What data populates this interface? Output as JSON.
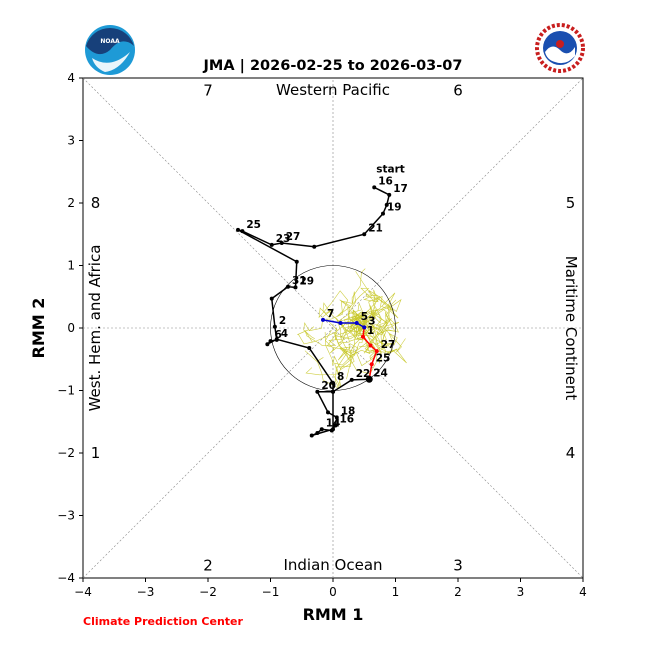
{
  "logos": {
    "left": "NOAA",
    "right": "NATIONAL WEATHER SERVICE"
  },
  "chart_data": {
    "type": "line",
    "title": "JMA | 2026-02-25 to 2026-03-07",
    "xlabel": "RMM 1",
    "ylabel": "RMM 2",
    "xlim": [
      -4,
      4
    ],
    "ylim": [
      -4,
      4
    ],
    "xticks": [
      "−4",
      "−3",
      "−2",
      "−1",
      "0",
      "1",
      "2",
      "3",
      "4"
    ],
    "yticks": [
      "−4",
      "−3",
      "−2",
      "−1",
      "0",
      "1",
      "2",
      "3",
      "4"
    ],
    "regions": {
      "top": "Western Pacific",
      "bottom": "Indian Ocean",
      "left": "West. Hem. and Africa",
      "right": "Maritime Continent"
    },
    "phases": [
      {
        "label": "1",
        "x": -3.8,
        "y": -2.0
      },
      {
        "label": "2",
        "x": -2.0,
        "y": -3.8
      },
      {
        "label": "3",
        "x": 2.0,
        "y": -3.8
      },
      {
        "label": "4",
        "x": 3.8,
        "y": -2.0
      },
      {
        "label": "5",
        "x": 3.8,
        "y": 2.0
      },
      {
        "label": "6",
        "x": 2.0,
        "y": 3.8
      },
      {
        "label": "7",
        "x": -2.0,
        "y": 3.8
      },
      {
        "label": "8",
        "x": -3.8,
        "y": 2.0
      }
    ],
    "start_label": "start",
    "series": [
      {
        "color": "#000000",
        "points": [
          {
            "x": 0.66,
            "y": 2.25,
            "label": "16"
          },
          {
            "x": 0.9,
            "y": 2.13,
            "label": "17"
          },
          {
            "x": 0.86,
            "y": 1.97,
            "label": ""
          },
          {
            "x": 0.8,
            "y": 1.83,
            "label": "19"
          },
          {
            "x": 0.5,
            "y": 1.5,
            "label": "21"
          },
          {
            "x": -0.3,
            "y": 1.3,
            "label": ""
          },
          {
            "x": -0.82,
            "y": 1.36,
            "label": "27"
          },
          {
            "x": -0.98,
            "y": 1.33,
            "label": "23"
          },
          {
            "x": -1.45,
            "y": 1.55,
            "label": "25"
          },
          {
            "x": -1.52,
            "y": 1.57,
            "label": ""
          },
          {
            "x": -0.58,
            "y": 1.06,
            "label": ""
          },
          {
            "x": -0.6,
            "y": 0.65,
            "label": "29"
          },
          {
            "x": -0.72,
            "y": 0.66,
            "label": "31"
          },
          {
            "x": -0.98,
            "y": 0.47,
            "label": ""
          },
          {
            "x": -0.93,
            "y": 0.02,
            "label": "2"
          },
          {
            "x": -0.9,
            "y": -0.19,
            "label": "4"
          },
          {
            "x": -1.0,
            "y": -0.21,
            "label": "6"
          },
          {
            "x": -1.05,
            "y": -0.26,
            "label": ""
          },
          {
            "x": -0.9,
            "y": -0.18,
            "label": ""
          },
          {
            "x": -0.38,
            "y": -0.32,
            "label": ""
          },
          {
            "x": 0.0,
            "y": -0.88,
            "label": "8"
          },
          {
            "x": 0.0,
            "y": -1.02,
            "label": ""
          },
          {
            "x": -0.25,
            "y": -1.02,
            "label": "20"
          },
          {
            "x": -0.08,
            "y": -1.35,
            "label": ""
          },
          {
            "x": 0.06,
            "y": -1.43,
            "label": "18"
          },
          {
            "x": 0.04,
            "y": -1.56,
            "label": "16"
          },
          {
            "x": -0.02,
            "y": -1.64,
            "label": ""
          },
          {
            "x": -0.18,
            "y": -1.62,
            "label": "14"
          },
          {
            "x": -0.25,
            "y": -1.68,
            "label": ""
          },
          {
            "x": -0.34,
            "y": -1.72,
            "label": ""
          },
          {
            "x": 0.0,
            "y": -1.62,
            "label": ""
          },
          {
            "x": 0.0,
            "y": -1.02,
            "label": ""
          },
          {
            "x": 0.3,
            "y": -0.83,
            "label": "22"
          },
          {
            "x": 0.58,
            "y": -0.82,
            "label": "24"
          }
        ]
      },
      {
        "color": "#ff0000",
        "points": [
          {
            "x": 0.58,
            "y": -0.82,
            "label": ""
          },
          {
            "x": 0.62,
            "y": -0.58,
            "label": "25"
          },
          {
            "x": 0.7,
            "y": -0.37,
            "label": "27"
          },
          {
            "x": 0.6,
            "y": -0.28,
            "label": ""
          },
          {
            "x": 0.48,
            "y": -0.14,
            "label": "1"
          },
          {
            "x": 0.5,
            "y": 0.01,
            "label": ""
          }
        ]
      },
      {
        "color": "#0000cc",
        "points": [
          {
            "x": 0.5,
            "y": 0.01,
            "label": "3"
          },
          {
            "x": 0.38,
            "y": 0.08,
            "label": "5"
          },
          {
            "x": 0.12,
            "y": 0.08,
            "label": ""
          },
          {
            "x": -0.16,
            "y": 0.13,
            "label": "7"
          }
        ]
      }
    ],
    "unit_circle_radius": 1,
    "ensemble_color": "#c8c82a",
    "grid": "dashed diagonals through origin and zero lines",
    "credit": "Climate Prediction Center"
  }
}
